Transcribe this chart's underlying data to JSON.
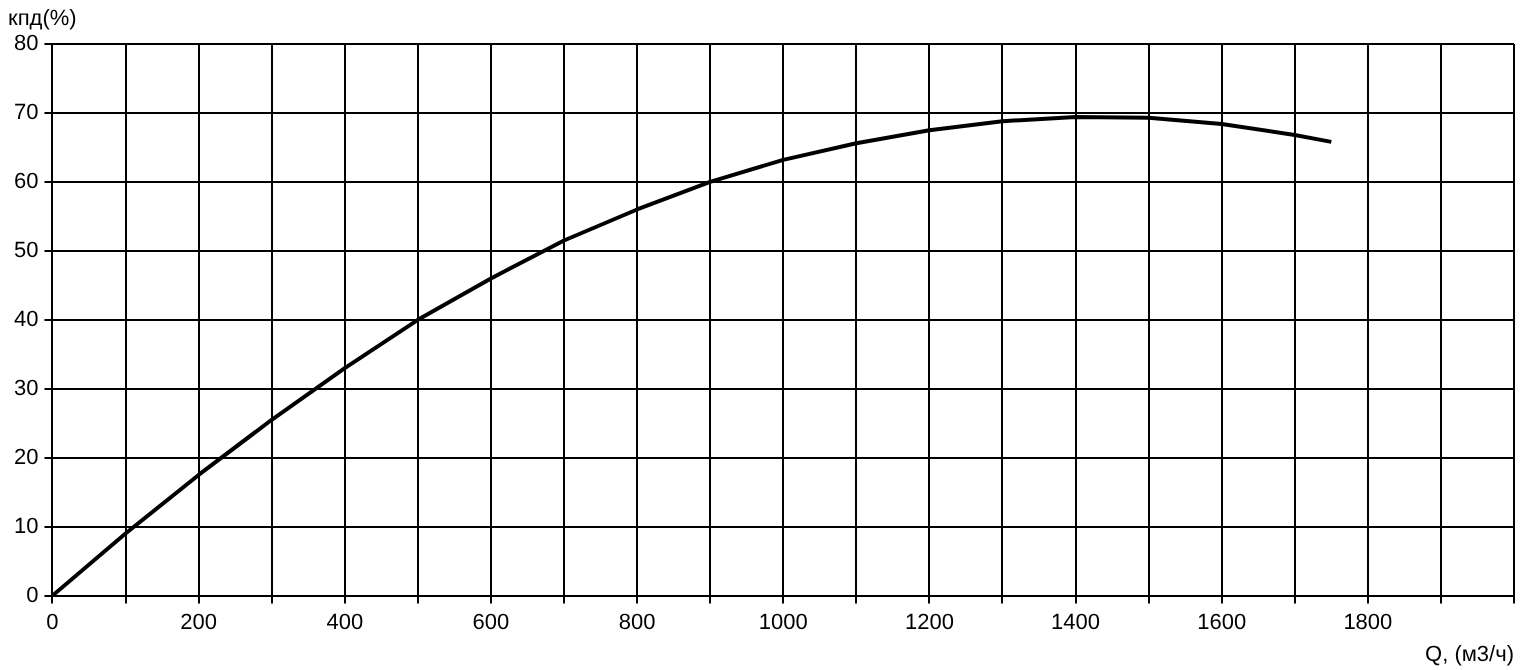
{
  "chart_data": {
    "type": "line",
    "ylabel": "кпд(%)",
    "xlabel": "Q, (м3/ч)",
    "series": [
      {
        "color": "#000000",
        "x": [
          0,
          100,
          200,
          300,
          400,
          500,
          600,
          700,
          800,
          900,
          1000,
          1100,
          1200,
          1300,
          1400,
          1500,
          1600,
          1700,
          1750
        ],
        "values": [
          0,
          9,
          17.5,
          25.5,
          33,
          40,
          46,
          51.5,
          56,
          60,
          63.2,
          65.6,
          67.5,
          68.8,
          69.4,
          69.3,
          68.4,
          66.8,
          65.8
        ]
      }
    ],
    "xlim": [
      0,
      2000
    ],
    "xticks": [
      0,
      {
        "value": 100,
        "label": null
      },
      200,
      {
        "value": 300,
        "label": null
      },
      400,
      {
        "value": 500,
        "label": null
      },
      600,
      {
        "value": 700,
        "label": null
      },
      800,
      {
        "value": 900,
        "label": null
      },
      1000,
      {
        "value": 1100,
        "label": null
      },
      1200,
      {
        "value": 1300,
        "label": null
      },
      1400,
      {
        "value": 1500,
        "label": null
      },
      1600,
      {
        "value": 1700,
        "label": null
      },
      1800,
      {
        "value": 1900,
        "label": null
      },
      {
        "value": 2000,
        "label": null
      }
    ],
    "ylim": [
      0,
      80
    ],
    "yticks": [
      0,
      10,
      20,
      30,
      40,
      50,
      60,
      70,
      80
    ],
    "grid": true,
    "legend": false,
    "marker": "none",
    "line_style": "solid"
  }
}
